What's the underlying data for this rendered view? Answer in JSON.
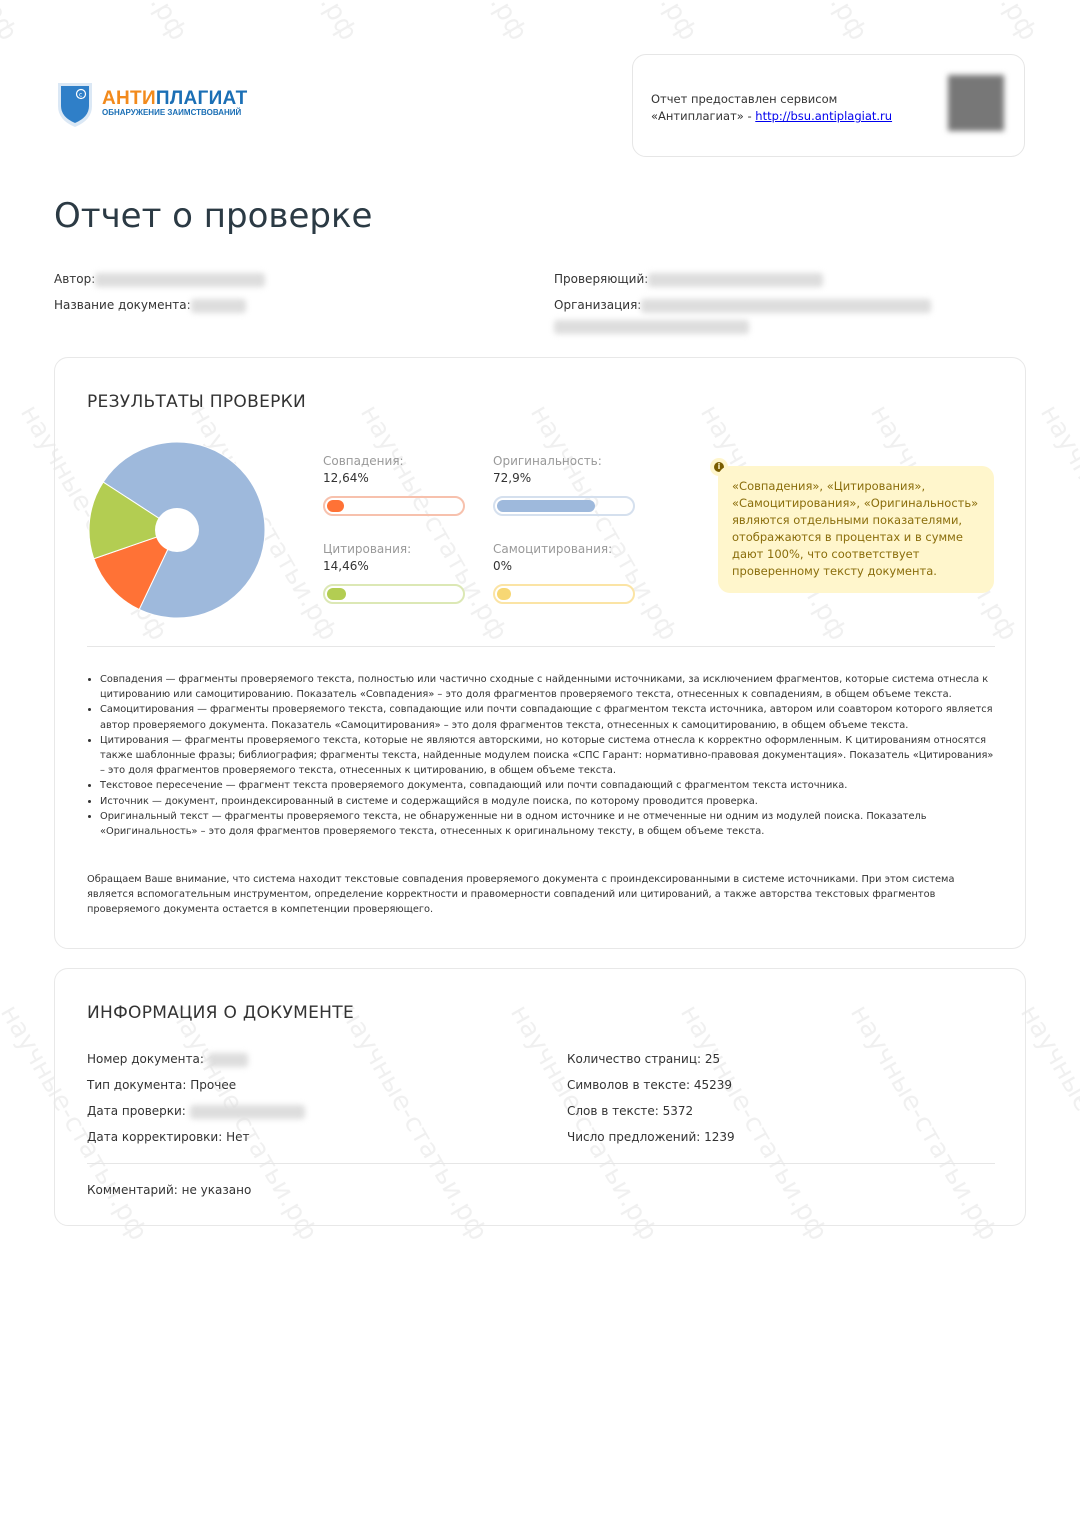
{
  "logo": {
    "brand_part1": "АНТИ",
    "brand_part2": "ПЛАГИАТ",
    "tagline": "ОБНАРУЖЕНИЕ ЗАИМСТВОВАНИЙ"
  },
  "provider": {
    "line1": "Отчет предоставлен сервисом",
    "line2": "«Антиплагиат» - ",
    "link": "http://bsu.antiplagiat.ru"
  },
  "title": "Отчет о проверке",
  "meta": {
    "author_label": "Автор:",
    "doc_name_label": "Название документа:",
    "checker_label": "Проверяющий:",
    "org_label": "Организация:"
  },
  "results": {
    "title": "РЕЗУЛЬТАТЫ ПРОВЕРКИ",
    "stats": [
      {
        "label": "Совпадения:",
        "value": "12,64%",
        "percent": 12.64,
        "color": "#ff7236",
        "border": "#f7c1ad"
      },
      {
        "label": "Оригинальность:",
        "value": "72,9%",
        "percent": 72.9,
        "color": "#9eb9dc",
        "border": "#d5e0ee"
      },
      {
        "label": "Цитирования:",
        "value": "14,46%",
        "percent": 14.46,
        "color": "#b3cd52",
        "border": "#dce8b5"
      },
      {
        "label": "Самоцитирования:",
        "value": "0%",
        "percent": 0,
        "color": "#f7d774",
        "border": "#fbe4a5"
      }
    ],
    "note": "«Совпадения», «Цитирования», «Самоцитирования», «Оригинальность» являются отдельными показателями, отображаются в процентах и в сумме дают 100%, что соответствует проверенному тексту документа.",
    "info_icon": "i",
    "definitions": [
      "Совпадения — фрагменты проверяемого текста, полностью или частично сходные с найденными источниками, за исключением фрагментов, которые система отнесла к цитированию или самоцитированию. Показатель «Совпадения» – это доля фрагментов проверяемого текста, отнесенных к совпадениям, в общем объеме текста.",
      "Самоцитирования — фрагменты проверяемого текста, совпадающие или почти совпадающие с фрагментом текста источника, автором или соавтором которого является автор проверяемого документа. Показатель «Самоцитирования» – это доля фрагментов текста, отнесенных к самоцитированию, в общем объеме текста.",
      "Цитирования — фрагменты проверяемого текста, которые не являются авторскими, но которые система отнесла к корректно оформленным. К цитированиям относятся также шаблонные фразы; библиография; фрагменты текста, найденные модулем поиска «СПС Гарант: нормативно-правовая документация». Показатель «Цитирования» – это доля фрагментов проверяемого текста, отнесенных к цитированию, в общем объеме текста.",
      "Текстовое пересечение — фрагмент текста проверяемого документа, совпадающий или почти совпадающий с фрагментом текста источника.",
      "Источник — документ, проиндексированный в системе и содержащийся в модуле поиска, по которому проводится проверка.",
      "Оригинальный текст — фрагменты проверяемого текста, не обнаруженные ни в одном источнике и не отмеченные ни одним из модулей поиска. Показатель «Оригинальность» – это доля фрагментов проверяемого текста, отнесенных к оригинальному тексту, в общем объеме текста."
    ],
    "attention": "Обращаем Ваше внимание, что система находит текстовые совпадения проверяемого документа с проиндексированными в системе источниками. При этом система является вспомогательным инструментом, определение корректности и правомерности совпадений или цитирований, а также авторства текстовых фрагментов проверяемого документа остается в компетенции проверяющего."
  },
  "doc_info": {
    "title": "ИНФОРМАЦИЯ О ДОКУМЕНТЕ",
    "doc_number": "Номер документа:",
    "doc_type": "Тип документа: Прочее",
    "check_date": "Дата проверки:",
    "correction_date": "Дата корректировки: Нет",
    "pages": "Количество страниц: 25",
    "chars": "Символов в тексте: 45239",
    "words": "Слов в тексте: 5372",
    "sentences": "Число предложений: 1239",
    "comment": "Комментарий: не указано"
  },
  "watermark": "научные-статьи.рф"
}
